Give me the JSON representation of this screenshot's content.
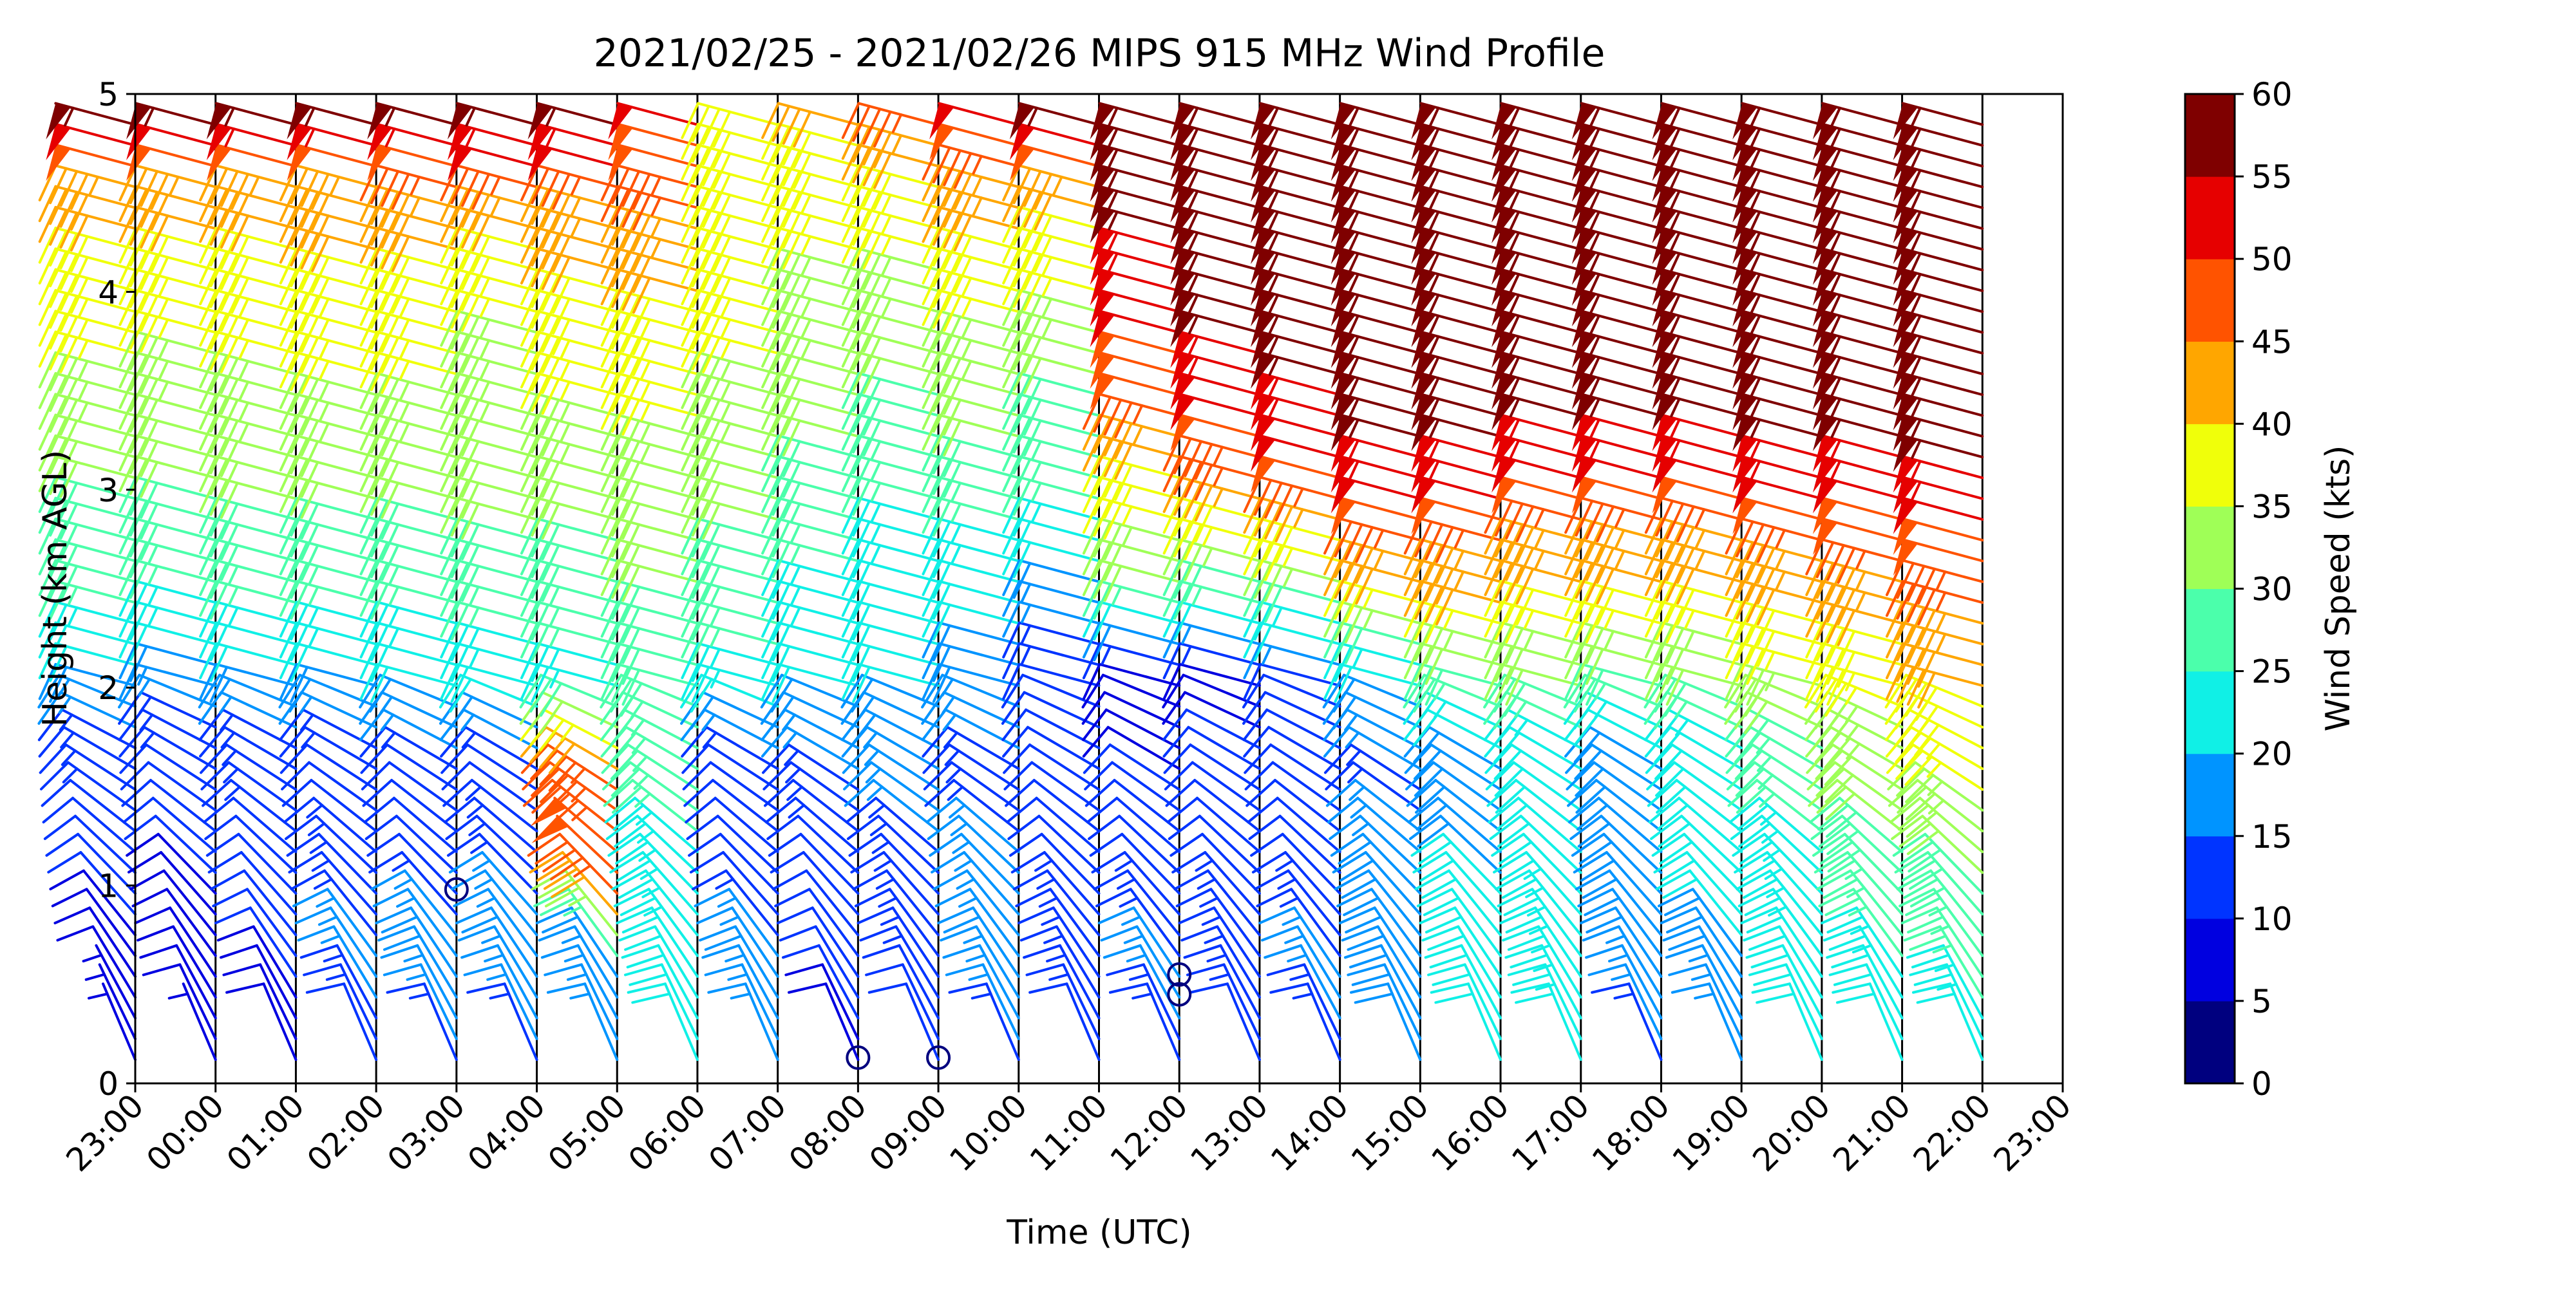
{
  "chart_data": {
    "type": "wind-barb-profile",
    "title": "2021/02/25 - 2021/02/26 MIPS 915 MHz Wind Profile",
    "xlabel": "Time (UTC)",
    "ylabel": "Height (km AGL)",
    "x_ticks": [
      "23:00",
      "00:00",
      "01:00",
      "02:00",
      "03:00",
      "04:00",
      "05:00",
      "06:00",
      "07:00",
      "08:00",
      "09:00",
      "10:00",
      "11:00",
      "12:00",
      "13:00",
      "14:00",
      "15:00",
      "16:00",
      "17:00",
      "18:00",
      "19:00",
      "20:00",
      "21:00",
      "22:00",
      "23:00"
    ],
    "y_ticks": [
      "0",
      "1",
      "2",
      "3",
      "4",
      "5"
    ],
    "ylim": [
      0,
      5
    ],
    "colorbar": {
      "label": "Wind Speed (kts)",
      "ticks": [
        "0",
        "5",
        "10",
        "15",
        "20",
        "25",
        "30",
        "35",
        "40",
        "45",
        "50",
        "55",
        "60"
      ],
      "range": [
        0,
        60
      ],
      "colors": [
        "#00007f",
        "#0000e0",
        "#0034ff",
        "#0094ff",
        "#10f0e6",
        "#4bffab",
        "#9fff57",
        "#f0ff0a",
        "#ffa600",
        "#ff5300",
        "#e60000",
        "#7f0000"
      ]
    },
    "summary_levels_km": [
      0.1,
      0.5,
      1.0,
      1.5,
      2.0,
      2.5,
      3.0,
      3.5,
      4.0,
      4.5,
      4.8
    ],
    "summary_speed_kts": [
      [
        5,
        8,
        11,
        13,
        18,
        28,
        30,
        34,
        38,
        42,
        55
      ],
      [
        7,
        9,
        10,
        12,
        17,
        26,
        30,
        33,
        37,
        42,
        55
      ],
      [
        8,
        10,
        12,
        13,
        18,
        27,
        31,
        34,
        38,
        42,
        56
      ],
      [
        12,
        16,
        13,
        12,
        19,
        27,
        31,
        35,
        38,
        43,
        56
      ],
      [
        14,
        20,
        10,
        12,
        20,
        27,
        31,
        35,
        38,
        44,
        56
      ],
      [
        14,
        18,
        14,
        12,
        22,
        28,
        31,
        33,
        36,
        45,
        57
      ],
      [
        15,
        16,
        50,
        45,
        24,
        28,
        31,
        36,
        39,
        46,
        57
      ],
      [
        20,
        22,
        24,
        26,
        28,
        30,
        32,
        36,
        40,
        46,
        50
      ],
      [
        16,
        18,
        10,
        10,
        24,
        28,
        31,
        34,
        38,
        40,
        38
      ],
      [
        8,
        12,
        12,
        14,
        20,
        24,
        28,
        32,
        34,
        38,
        40
      ],
      [
        10,
        14,
        14,
        16,
        20,
        22,
        26,
        30,
        34,
        38,
        45
      ],
      [
        14,
        18,
        16,
        14,
        18,
        22,
        28,
        32,
        36,
        44,
        50
      ],
      [
        12,
        14,
        12,
        10,
        12,
        18,
        26,
        30,
        36,
        42,
        55
      ],
      [
        14,
        16,
        12,
        10,
        8,
        30,
        38,
        48,
        52,
        58,
        58
      ],
      [
        12,
        14,
        12,
        12,
        8,
        28,
        45,
        52,
        58,
        58,
        60
      ],
      [
        14,
        16,
        12,
        10,
        12,
        32,
        48,
        55,
        58,
        58,
        60
      ],
      [
        18,
        20,
        18,
        14,
        20,
        40,
        52,
        58,
        58,
        58,
        60
      ],
      [
        20,
        22,
        20,
        18,
        28,
        42,
        52,
        58,
        58,
        58,
        60
      ],
      [
        22,
        24,
        22,
        20,
        30,
        40,
        50,
        58,
        58,
        58,
        60
      ],
      [
        14,
        18,
        20,
        18,
        28,
        40,
        50,
        58,
        58,
        58,
        60
      ],
      [
        16,
        18,
        22,
        20,
        30,
        40,
        50,
        58,
        58,
        58,
        60
      ],
      [
        20,
        22,
        24,
        26,
        34,
        42,
        52,
        58,
        58,
        58,
        60
      ],
      [
        20,
        24,
        28,
        32,
        36,
        44,
        52,
        58,
        58,
        58,
        60
      ],
      [
        22,
        26,
        30,
        36,
        40,
        46,
        54,
        58,
        58,
        58,
        60
      ]
    ],
    "calm_markers": [
      {
        "time": "03:00",
        "height_km": 0.98
      },
      {
        "time": "08:00",
        "height_km": 0.13
      },
      {
        "time": "09:00",
        "height_km": 0.13
      },
      {
        "time": "12:00",
        "height_km": 0.45
      },
      {
        "time": "12:00",
        "height_km": 0.55
      }
    ]
  }
}
